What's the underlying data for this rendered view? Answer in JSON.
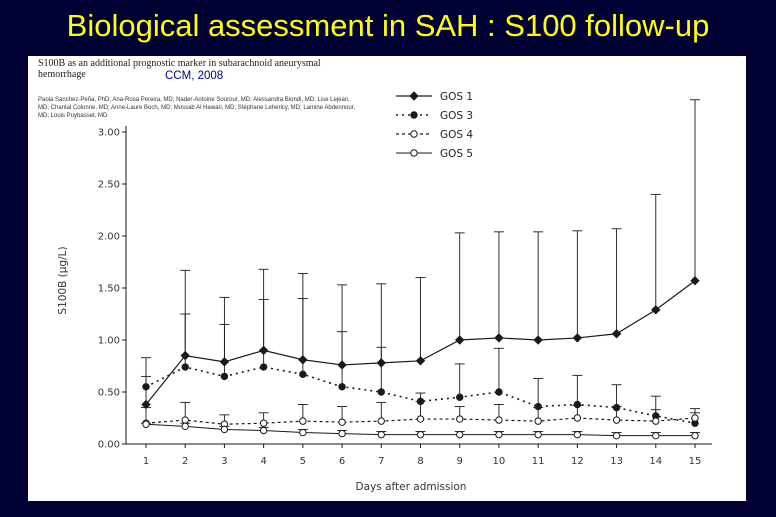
{
  "slide": {
    "title": "Biological assessment in SAH : S100 follow-up"
  },
  "citation": {
    "article_title": "S100B as an additional prognostic marker in subarachnoid aneurysmal hemorrhage",
    "journal_tag": "CCM, 2008",
    "authors": "Paola Sanchez-Peña, PhD; Ana-Rosa Pereira, MD; Nader-Antoine Sourour, MD; Alessandra Biondi, MD; Lise Lejean, MD; Chantal Colonne, MD; Anne-Laure Boch, MD; Mossab Al Hawari, MD; Stéphane Lehericy, MD; Lamine Abdennour, MD; Louis Puybasset, MD"
  },
  "chart_data": {
    "type": "line",
    "xlabel": "Days after admission",
    "ylabel": "S100B (µg/L)",
    "x": [
      1,
      2,
      3,
      4,
      5,
      6,
      7,
      8,
      9,
      10,
      11,
      12,
      13,
      14,
      15
    ],
    "xlim": [
      1,
      15
    ],
    "ylim": [
      0,
      3.0
    ],
    "yticks": [
      "0.00",
      "0.50",
      "1.00",
      "1.50",
      "2.00",
      "2.50",
      "3.00"
    ],
    "legend": "top-right",
    "series": [
      {
        "name": "GOS 1",
        "style": "solid",
        "marker": "filled-diamond",
        "values": [
          0.38,
          0.85,
          0.79,
          0.9,
          0.81,
          0.76,
          0.78,
          0.8,
          1.0,
          1.02,
          1.0,
          1.02,
          1.06,
          1.29,
          1.57
        ],
        "upper_error": [
          0.83,
          1.67,
          1.41,
          1.68,
          1.64,
          1.53,
          1.54,
          1.6,
          2.03,
          2.04,
          2.04,
          2.05,
          2.07,
          2.4,
          3.31
        ]
      },
      {
        "name": "GOS 3",
        "style": "dotted",
        "marker": "filled-circle",
        "values": [
          0.55,
          0.74,
          0.65,
          0.74,
          0.67,
          0.55,
          0.5,
          0.41,
          0.45,
          0.5,
          0.36,
          0.38,
          0.35,
          0.27,
          0.2
        ],
        "upper_error": [
          0.65,
          1.25,
          1.15,
          1.39,
          1.4,
          1.08,
          0.93,
          0.49,
          0.77,
          0.92,
          0.63,
          0.66,
          0.57,
          0.46,
          0.3
        ]
      },
      {
        "name": "GOS 4",
        "style": "dashed",
        "marker": "open-circle",
        "values": [
          0.2,
          0.23,
          0.19,
          0.2,
          0.22,
          0.21,
          0.22,
          0.24,
          0.24,
          0.23,
          0.22,
          0.25,
          0.23,
          0.22,
          0.25
        ],
        "upper_error": [
          0.35,
          0.4,
          0.28,
          0.3,
          0.38,
          0.36,
          0.4,
          0.41,
          0.36,
          0.38,
          0.35,
          0.37,
          0.36,
          0.33,
          0.34
        ]
      },
      {
        "name": "GOS 5",
        "style": "solid-thin",
        "marker": "open-circle",
        "values": [
          0.19,
          0.17,
          0.14,
          0.13,
          0.11,
          0.1,
          0.09,
          0.09,
          0.09,
          0.09,
          0.09,
          0.09,
          0.08,
          0.08,
          0.08
        ],
        "upper_error": [
          0.2,
          0.2,
          0.17,
          0.16,
          0.14,
          0.13,
          0.12,
          0.12,
          0.12,
          0.12,
          0.12,
          0.12,
          0.11,
          0.11,
          0.11
        ]
      }
    ],
    "colors": {
      "line": "#1a1a1a",
      "background": "#ffffff",
      "slide_bg": "#000033",
      "title": "#ffff00",
      "tag": "#00008b"
    }
  }
}
